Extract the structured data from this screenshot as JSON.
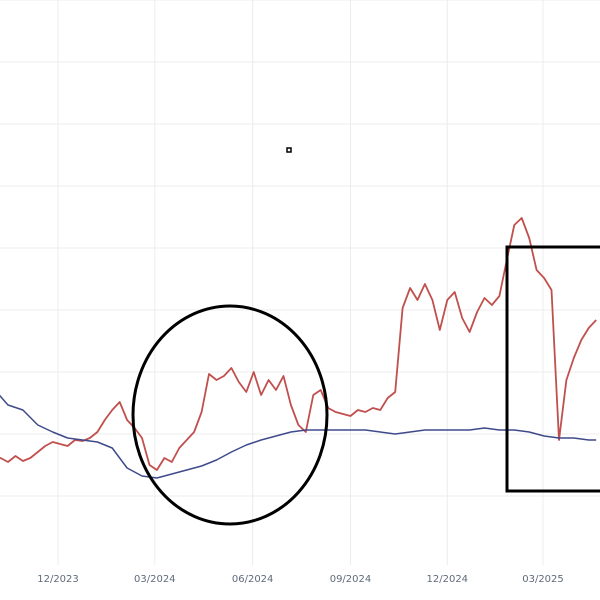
{
  "chart_data": {
    "type": "line",
    "title": "",
    "xlabel": "",
    "ylabel": "",
    "grid": true,
    "x_range": [
      "2023-10-01",
      "2025-05-01"
    ],
    "x_ticks": [
      {
        "date": "2023-12-01",
        "label": "12/2023"
      },
      {
        "date": "2024-03-01",
        "label": "03/2024"
      },
      {
        "date": "2024-06-01",
        "label": "06/2024"
      },
      {
        "date": "2024-09-01",
        "label": "09/2024"
      },
      {
        "date": "2024-12-01",
        "label": "12/2024"
      },
      {
        "date": "2025-03-01",
        "label": "03/2025"
      }
    ],
    "series": [
      {
        "color": "#c0504d",
        "points": [
          [
            "2023-10-01",
            460
          ],
          [
            "2023-10-08",
            458
          ],
          [
            "2023-10-15",
            462
          ],
          [
            "2023-10-22",
            456
          ],
          [
            "2023-10-29",
            461
          ],
          [
            "2023-11-05",
            458
          ],
          [
            "2023-11-12",
            452
          ],
          [
            "2023-11-19",
            446
          ],
          [
            "2023-11-26",
            442
          ],
          [
            "2023-12-03",
            444
          ],
          [
            "2023-12-10",
            446
          ],
          [
            "2023-12-17",
            440
          ],
          [
            "2023-12-24",
            441
          ],
          [
            "2023-12-31",
            438
          ],
          [
            "2024-01-07",
            432
          ],
          [
            "2024-01-14",
            420
          ],
          [
            "2024-01-21",
            410
          ],
          [
            "2024-01-28",
            402
          ],
          [
            "2024-02-04",
            420
          ],
          [
            "2024-02-11",
            428
          ],
          [
            "2024-02-18",
            438
          ],
          [
            "2024-02-25",
            465
          ],
          [
            "2024-03-03",
            470
          ],
          [
            "2024-03-10",
            458
          ],
          [
            "2024-03-17",
            462
          ],
          [
            "2024-03-24",
            448
          ],
          [
            "2024-03-31",
            440
          ],
          [
            "2024-04-07",
            432
          ],
          [
            "2024-04-14",
            412
          ],
          [
            "2024-04-21",
            374
          ],
          [
            "2024-04-28",
            380
          ],
          [
            "2024-05-05",
            376
          ],
          [
            "2024-05-12",
            368
          ],
          [
            "2024-05-19",
            382
          ],
          [
            "2024-05-26",
            392
          ],
          [
            "2024-06-02",
            372
          ],
          [
            "2024-06-09",
            395
          ],
          [
            "2024-06-16",
            380
          ],
          [
            "2024-06-23",
            390
          ],
          [
            "2024-06-30",
            376
          ],
          [
            "2024-07-07",
            405
          ],
          [
            "2024-07-14",
            425
          ],
          [
            "2024-07-21",
            432
          ],
          [
            "2024-07-28",
            395
          ],
          [
            "2024-08-04",
            390
          ],
          [
            "2024-08-11",
            408
          ],
          [
            "2024-08-18",
            412
          ],
          [
            "2024-08-25",
            414
          ],
          [
            "2024-09-01",
            416
          ],
          [
            "2024-09-08",
            410
          ],
          [
            "2024-09-15",
            412
          ],
          [
            "2024-09-22",
            408
          ],
          [
            "2024-09-29",
            410
          ],
          [
            "2024-10-06",
            398
          ],
          [
            "2024-10-13",
            392
          ],
          [
            "2024-10-20",
            308
          ],
          [
            "2024-10-27",
            288
          ],
          [
            "2024-11-03",
            300
          ],
          [
            "2024-11-10",
            284
          ],
          [
            "2024-11-17",
            300
          ],
          [
            "2024-11-24",
            330
          ],
          [
            "2024-12-01",
            300
          ],
          [
            "2024-12-08",
            292
          ],
          [
            "2024-12-15",
            318
          ],
          [
            "2024-12-22",
            332
          ],
          [
            "2024-12-29",
            312
          ],
          [
            "2025-01-05",
            298
          ],
          [
            "2025-01-12",
            305
          ],
          [
            "2025-01-19",
            296
          ],
          [
            "2025-01-26",
            260
          ],
          [
            "2025-02-02",
            225
          ],
          [
            "2025-02-09",
            218
          ],
          [
            "2025-02-16",
            238
          ],
          [
            "2025-02-23",
            270
          ],
          [
            "2025-03-02",
            278
          ],
          [
            "2025-03-09",
            290
          ],
          [
            "2025-03-16",
            440
          ],
          [
            "2025-03-23",
            380
          ],
          [
            "2025-03-30",
            358
          ],
          [
            "2025-04-06",
            340
          ],
          [
            "2025-04-13",
            328
          ],
          [
            "2025-04-20",
            320
          ]
        ]
      },
      {
        "color": "#3f4a8a",
        "points": [
          [
            "2023-10-01",
            388
          ],
          [
            "2023-10-15",
            405
          ],
          [
            "2023-10-29",
            410
          ],
          [
            "2023-11-12",
            425
          ],
          [
            "2023-11-26",
            432
          ],
          [
            "2023-12-10",
            438
          ],
          [
            "2023-12-24",
            440
          ],
          [
            "2024-01-07",
            442
          ],
          [
            "2024-01-21",
            448
          ],
          [
            "2024-02-04",
            468
          ],
          [
            "2024-02-18",
            476
          ],
          [
            "2024-03-03",
            478
          ],
          [
            "2024-03-17",
            474
          ],
          [
            "2024-03-31",
            470
          ],
          [
            "2024-04-14",
            466
          ],
          [
            "2024-04-28",
            460
          ],
          [
            "2024-05-12",
            452
          ],
          [
            "2024-05-26",
            445
          ],
          [
            "2024-06-09",
            440
          ],
          [
            "2024-06-23",
            436
          ],
          [
            "2024-07-07",
            432
          ],
          [
            "2024-07-21",
            430
          ],
          [
            "2024-08-04",
            430
          ],
          [
            "2024-08-18",
            430
          ],
          [
            "2024-09-01",
            430
          ],
          [
            "2024-09-15",
            430
          ],
          [
            "2024-09-29",
            432
          ],
          [
            "2024-10-13",
            434
          ],
          [
            "2024-10-27",
            432
          ],
          [
            "2024-11-10",
            430
          ],
          [
            "2024-11-24",
            430
          ],
          [
            "2024-12-08",
            430
          ],
          [
            "2024-12-22",
            430
          ],
          [
            "2025-01-05",
            428
          ],
          [
            "2025-01-19",
            430
          ],
          [
            "2025-02-02",
            430
          ],
          [
            "2025-02-16",
            432
          ],
          [
            "2025-03-02",
            436
          ],
          [
            "2025-03-16",
            438
          ],
          [
            "2025-03-30",
            438
          ],
          [
            "2025-04-13",
            440
          ],
          [
            "2025-04-20",
            440
          ]
        ]
      }
    ],
    "annotations": [
      {
        "type": "ellipse",
        "color": "#000000"
      },
      {
        "type": "rectangle",
        "color": "#000000"
      },
      {
        "type": "marker",
        "color": "#000000"
      }
    ]
  }
}
